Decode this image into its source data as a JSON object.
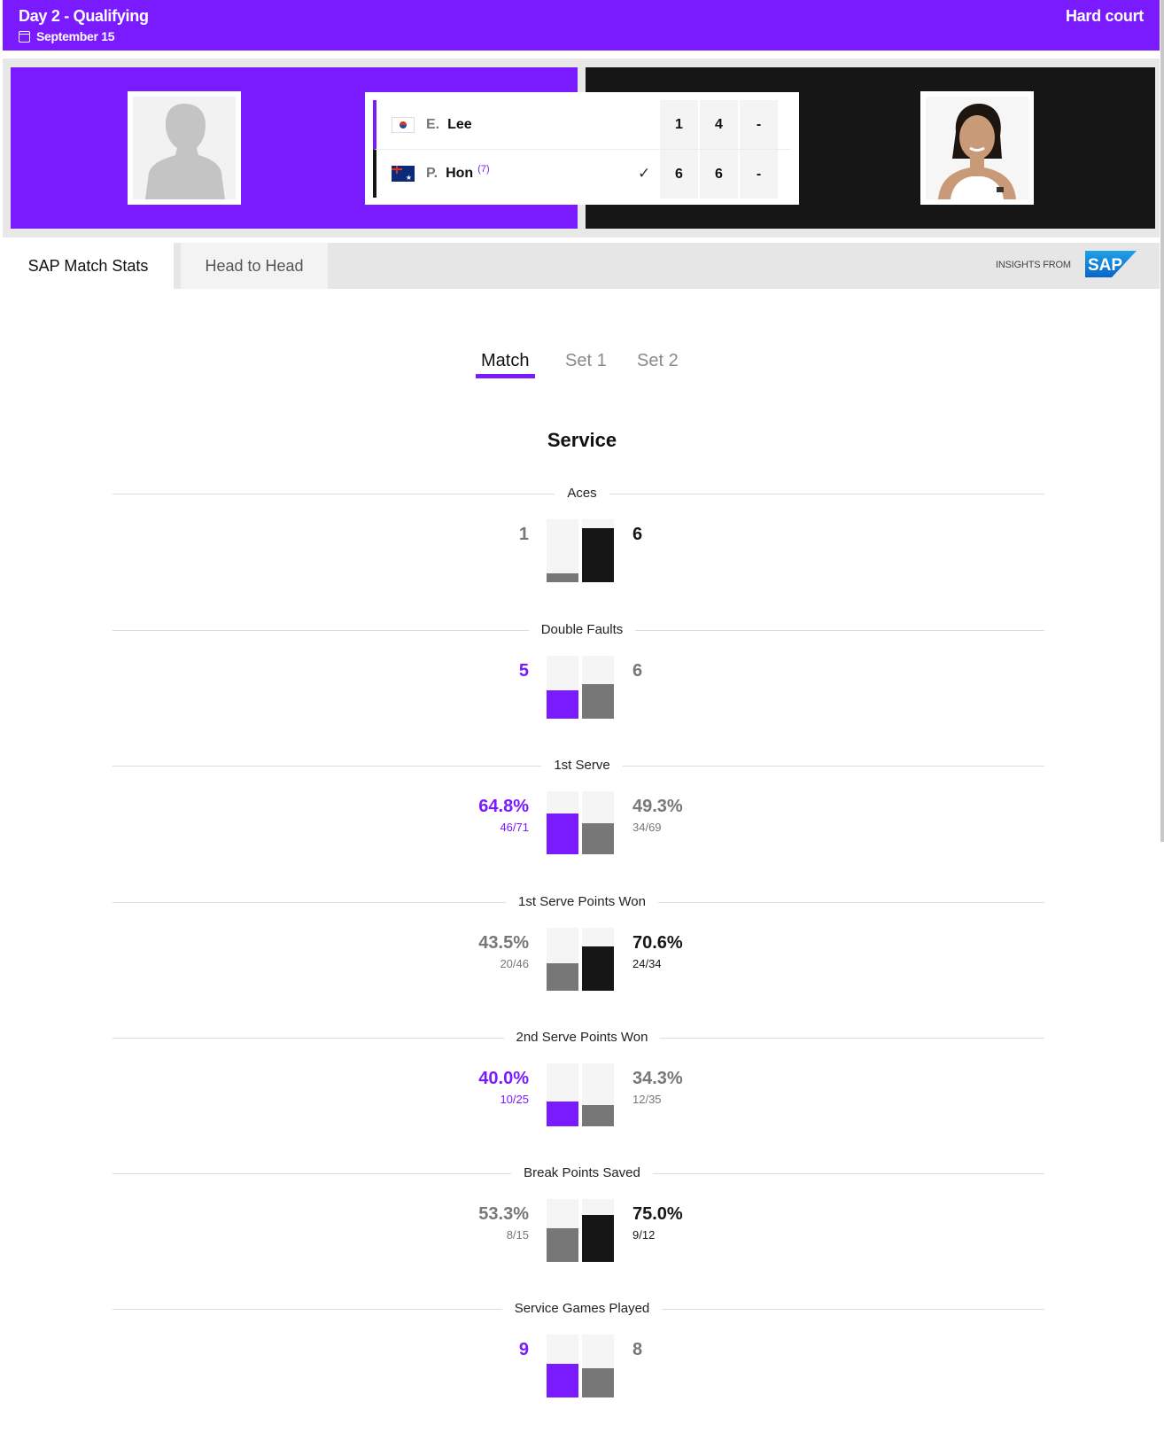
{
  "header": {
    "title": "Day 2 - Qualifying",
    "date": "September 15",
    "court": "Hard court"
  },
  "colors": {
    "accent": "#7a1bff",
    "dark": "#161616",
    "grey": "#777777"
  },
  "players": [
    {
      "initial": "E.",
      "name": "Lee",
      "seed": "",
      "country_flag": "south-korea-flag",
      "sets": [
        "1",
        "4",
        "-"
      ],
      "winner": false
    },
    {
      "initial": "P.",
      "name": "Hon",
      "seed": "(7)",
      "country_flag": "australia-flag",
      "sets": [
        "6",
        "6",
        "-"
      ],
      "winner": true
    }
  ],
  "tabs": {
    "stats": "SAP Match Stats",
    "h2h": "Head to Head",
    "insights": "INSIGHTS FROM",
    "sap": "SAP"
  },
  "subtabs": [
    "Match",
    "Set 1",
    "Set 2"
  ],
  "section": "Service",
  "stats": [
    {
      "label": "Aces",
      "left": "1",
      "left_sub": "",
      "right": "6",
      "right_sub": "",
      "left_frac": 0.14,
      "right_frac": 0.86,
      "left_color": "grey",
      "right_color": "dark"
    },
    {
      "label": "Double Faults",
      "left": "5",
      "left_sub": "",
      "right": "6",
      "right_sub": "",
      "left_frac": 0.45,
      "right_frac": 0.55,
      "left_color": "purple",
      "right_color": "grey"
    },
    {
      "label": "1st Serve",
      "left": "64.8%",
      "left_sub": "46/71",
      "right": "49.3%",
      "right_sub": "34/69",
      "left_frac": 0.648,
      "right_frac": 0.493,
      "left_color": "purple",
      "right_color": "grey"
    },
    {
      "label": "1st Serve Points Won",
      "left": "43.5%",
      "left_sub": "20/46",
      "right": "70.6%",
      "right_sub": "24/34",
      "left_frac": 0.435,
      "right_frac": 0.706,
      "left_color": "grey",
      "right_color": "dark"
    },
    {
      "label": "2nd Serve Points Won",
      "left": "40.0%",
      "left_sub": "10/25",
      "right": "34.3%",
      "right_sub": "12/35",
      "left_frac": 0.4,
      "right_frac": 0.343,
      "left_color": "purple",
      "right_color": "grey"
    },
    {
      "label": "Break Points Saved",
      "left": "53.3%",
      "left_sub": "8/15",
      "right": "75.0%",
      "right_sub": "9/12",
      "left_frac": 0.533,
      "right_frac": 0.75,
      "left_color": "grey",
      "right_color": "dark"
    },
    {
      "label": "Service Games Played",
      "left": "9",
      "left_sub": "",
      "right": "8",
      "right_sub": "",
      "left_frac": 0.53,
      "right_frac": 0.47,
      "left_color": "purple",
      "right_color": "grey"
    }
  ]
}
